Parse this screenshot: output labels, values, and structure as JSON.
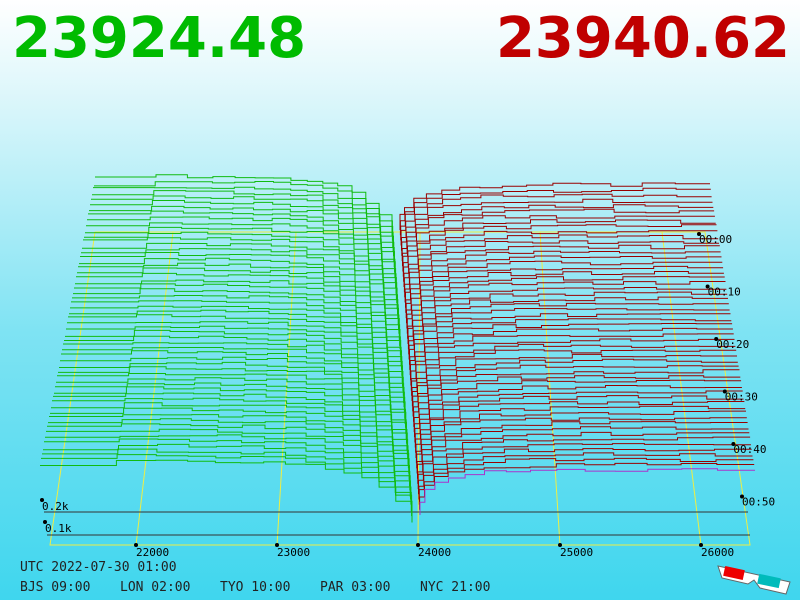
{
  "header": {
    "bid_price": "23924.48",
    "ask_price": "23940.62"
  },
  "price_axis": {
    "labels": [
      "22000",
      "23000",
      "24000",
      "25000",
      "26000"
    ]
  },
  "time_axis": {
    "labels": [
      "00:00",
      "00:10",
      "00:20",
      "00:30",
      "00:40",
      "00:50"
    ]
  },
  "depth_axis": {
    "labels": [
      "0.2k",
      "0.1k"
    ]
  },
  "footer": {
    "utc": "UTC 2022-07-30 01:00",
    "cities": [
      "BJS 09:00",
      "LON 02:00",
      "TYO 10:00",
      "PAR 03:00",
      "NYC 21:00"
    ]
  }
}
